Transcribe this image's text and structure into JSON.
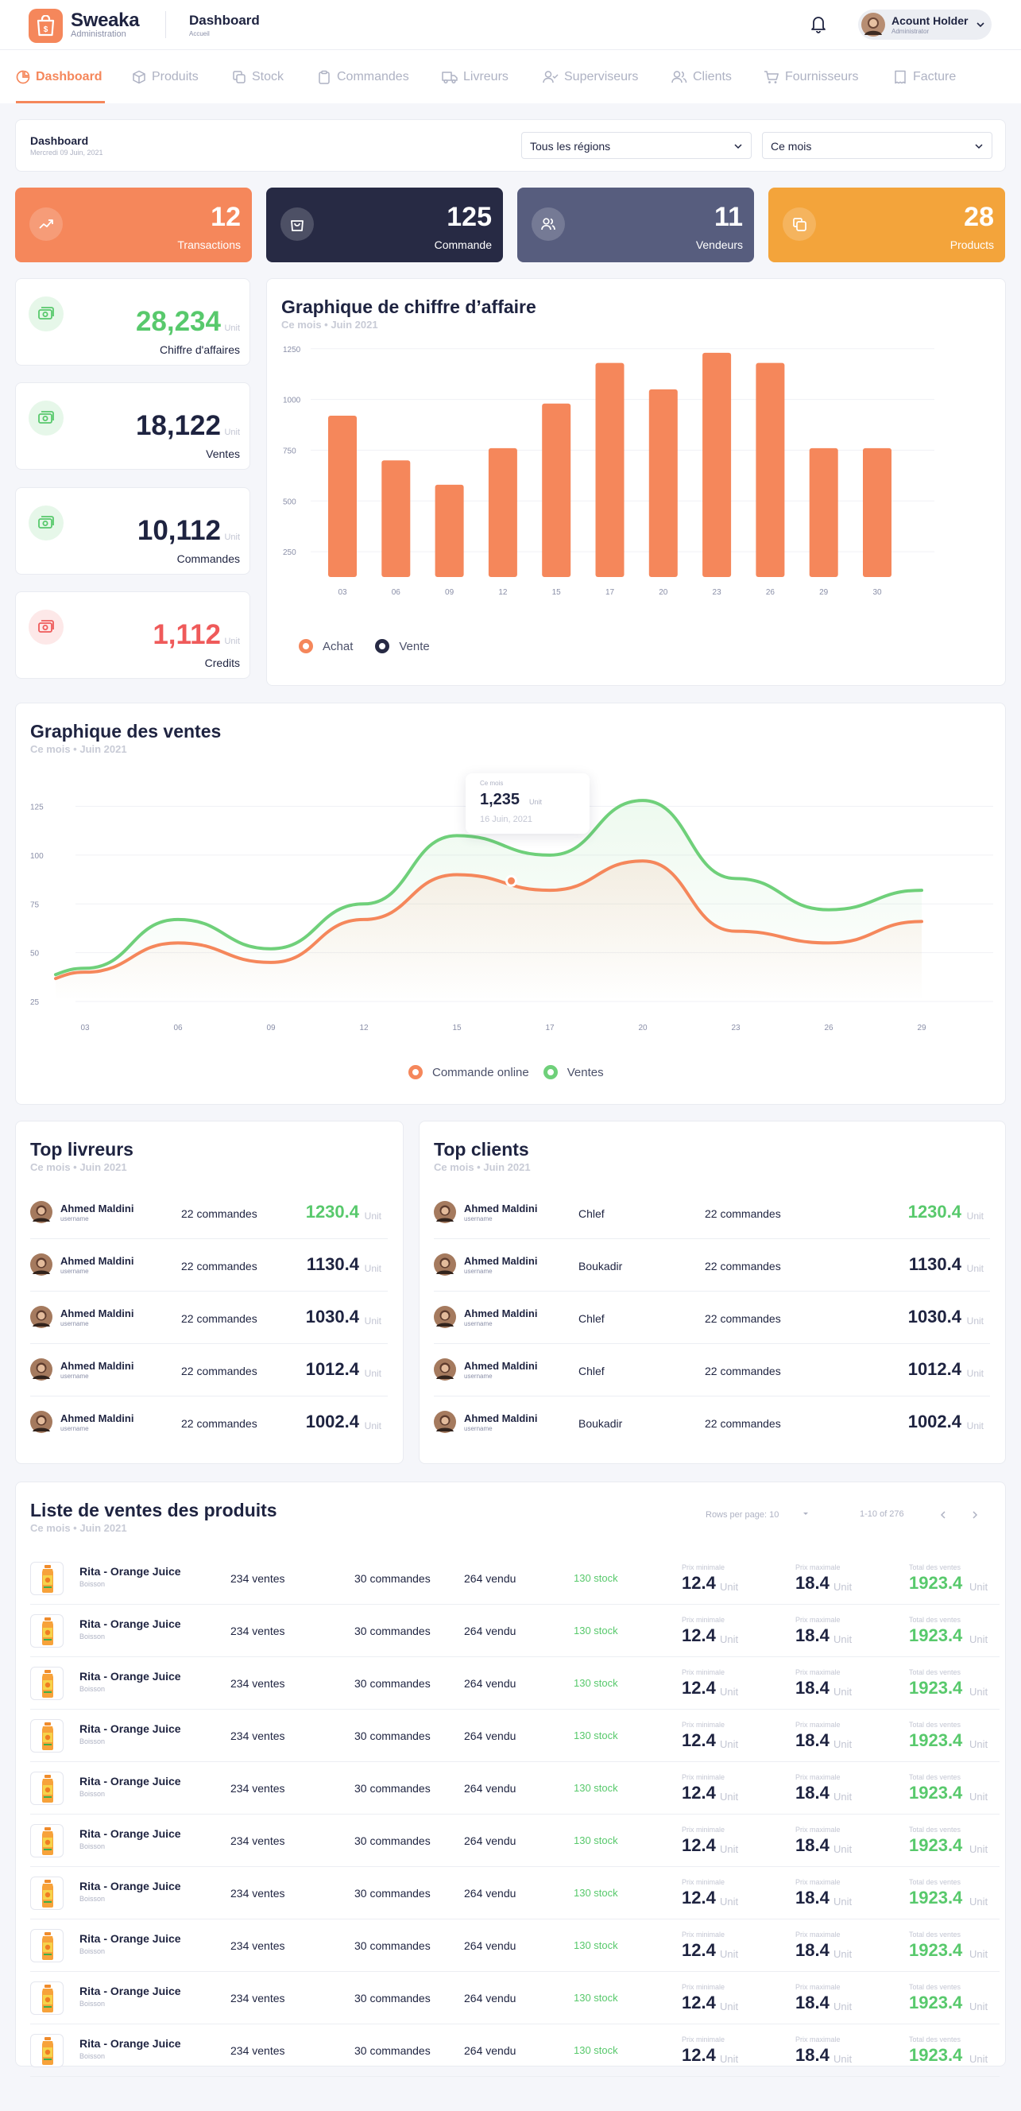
{
  "header": {
    "brand": "Sweaka",
    "brand_sub": "Administration",
    "page_title": "Dashboard",
    "page_sub": "Accueil",
    "user_name": "Acount Holder",
    "user_role": "Administrator"
  },
  "nav": [
    {
      "label": "Dashboard",
      "icon": "pie-chart-icon",
      "active": true
    },
    {
      "label": "Produits",
      "icon": "box-icon"
    },
    {
      "label": "Stock",
      "icon": "copy-icon"
    },
    {
      "label": "Commandes",
      "icon": "clipboard-icon"
    },
    {
      "label": "Livreurs",
      "icon": "truck-icon"
    },
    {
      "label": "Superviseurs",
      "icon": "user-check-icon"
    },
    {
      "label": "Clients",
      "icon": "users-icon"
    },
    {
      "label": "Fournisseurs",
      "icon": "cart-icon"
    },
    {
      "label": "Facture",
      "icon": "receipt-icon"
    }
  ],
  "filters": {
    "title": "Dashboard",
    "date": "Mercredi 09 Juin, 2021",
    "region": "Tous les régions",
    "period": "Ce mois"
  },
  "stats": [
    {
      "value": "12",
      "label": "Transactions",
      "color": "#f5875b"
    },
    {
      "value": "125",
      "label": "Commande",
      "color": "#272a44"
    },
    {
      "value": "11",
      "label": "Vendeurs",
      "color": "#575d7e"
    },
    {
      "value": "28",
      "label": "Products",
      "color": "#f3a43b"
    }
  ],
  "kpis": [
    {
      "value": "28,234",
      "unit": "Unit",
      "label": "Chiffre d'affaires",
      "color": "#58c96c"
    },
    {
      "value": "18,122",
      "unit": "Unit",
      "label": "Ventes",
      "color": "#1e2340"
    },
    {
      "value": "10,112",
      "unit": "Unit",
      "label": "Commandes",
      "color": "#1e2340"
    },
    {
      "value": "1,112",
      "unit": "Unit",
      "label": "Credits",
      "color": "#ef5a5a"
    }
  ],
  "chart_data": [
    {
      "type": "bar",
      "title": "Graphique de chiffre d’affaire",
      "subtitle": "Ce mois • Juin 2021",
      "categories": [
        "03",
        "06",
        "09",
        "12",
        "15",
        "17",
        "20",
        "23",
        "26",
        "29",
        "30"
      ],
      "series": [
        {
          "name": "Achat",
          "values": [
            920,
            700,
            580,
            760,
            980,
            1180,
            1050,
            1230,
            1180,
            760,
            760
          ]
        }
      ],
      "legend": [
        "Achat",
        "Vente"
      ],
      "yticks": [
        250,
        500,
        750,
        1000,
        1250
      ],
      "ylim": [
        125,
        1300
      ],
      "grid": true,
      "colors": {
        "Achat": "#f5875b",
        "Vente": "#272a44"
      }
    },
    {
      "type": "line",
      "title": "Graphique des ventes",
      "subtitle": "Ce mois • Juin 2021",
      "x": [
        "03",
        "06",
        "09",
        "12",
        "15",
        "17",
        "20",
        "23",
        "26",
        "29"
      ],
      "yticks": [
        25,
        50,
        75,
        100,
        125
      ],
      "ylim": [
        25,
        135
      ],
      "grid": true,
      "series": [
        {
          "name": "Commande online",
          "values": [
            40,
            55,
            45,
            67,
            90,
            82,
            97,
            61,
            55,
            66
          ]
        },
        {
          "name": "Ventes",
          "values": [
            42,
            67,
            52,
            75,
            110,
            100,
            128,
            88,
            72,
            82
          ]
        }
      ],
      "colors": {
        "Commande online": "#f5875b",
        "Ventes": "#6fd07a"
      },
      "tooltip": {
        "label": "Ce mois",
        "value": "1,235",
        "unit": "Unit",
        "date": "16 Juin, 2021"
      }
    }
  ],
  "top_livreurs": {
    "title": "Top livreurs",
    "subtitle": "Ce mois • Juin 2021",
    "rows": [
      {
        "name": "Ahmed Maldini",
        "user": "username",
        "orders": "22 commandes",
        "amount": "1230.4",
        "unit": "Unit",
        "color": "#58c96c"
      },
      {
        "name": "Ahmed Maldini",
        "user": "username",
        "orders": "22 commandes",
        "amount": "1130.4",
        "unit": "Unit",
        "color": "#1e2340"
      },
      {
        "name": "Ahmed Maldini",
        "user": "username",
        "orders": "22 commandes",
        "amount": "1030.4",
        "unit": "Unit",
        "color": "#1e2340"
      },
      {
        "name": "Ahmed Maldini",
        "user": "username",
        "orders": "22 commandes",
        "amount": "1012.4",
        "unit": "Unit",
        "color": "#1e2340"
      },
      {
        "name": "Ahmed Maldini",
        "user": "username",
        "orders": "22 commandes",
        "amount": "1002.4",
        "unit": "Unit",
        "color": "#1e2340"
      }
    ]
  },
  "top_clients": {
    "title": "Top clients",
    "subtitle": "Ce mois • Juin 2021",
    "rows": [
      {
        "name": "Ahmed Maldini",
        "user": "username",
        "region": "Chlef",
        "orders": "22 commandes",
        "amount": "1230.4",
        "unit": "Unit",
        "color": "#58c96c"
      },
      {
        "name": "Ahmed Maldini",
        "user": "username",
        "region": "Boukadir",
        "orders": "22 commandes",
        "amount": "1130.4",
        "unit": "Unit",
        "color": "#1e2340"
      },
      {
        "name": "Ahmed Maldini",
        "user": "username",
        "region": "Chlef",
        "orders": "22 commandes",
        "amount": "1030.4",
        "unit": "Unit",
        "color": "#1e2340"
      },
      {
        "name": "Ahmed Maldini",
        "user": "username",
        "region": "Chlef",
        "orders": "22 commandes",
        "amount": "1012.4",
        "unit": "Unit",
        "color": "#1e2340"
      },
      {
        "name": "Ahmed Maldini",
        "user": "username",
        "region": "Boukadir",
        "orders": "22 commandes",
        "amount": "1002.4",
        "unit": "Unit",
        "color": "#1e2340"
      }
    ]
  },
  "products": {
    "title": "Liste de ventes des produits",
    "subtitle": "Ce mois • Juin 2021",
    "rows_per_page": "Rows per page: 10",
    "range": "1-10 of 276",
    "rows": [
      {
        "name": "Rita - Orange Juice",
        "cat": "Boisson",
        "sales": "234 ventes",
        "orders": "30 commandes",
        "sold": "264 vendu",
        "stock": "130 stock",
        "min_label": "Prix minimale",
        "min": "12.4",
        "max_label": "Prix maximale",
        "max": "18.4",
        "total_label": "Total des ventes",
        "total": "1923.4",
        "unit": "Unit"
      },
      {
        "name": "Rita - Orange Juice",
        "cat": "Boisson",
        "sales": "234 ventes",
        "orders": "30 commandes",
        "sold": "264 vendu",
        "stock": "130 stock",
        "min_label": "Prix minimale",
        "min": "12.4",
        "max_label": "Prix maximale",
        "max": "18.4",
        "total_label": "Total des ventes",
        "total": "1923.4",
        "unit": "Unit"
      },
      {
        "name": "Rita - Orange Juice",
        "cat": "Boisson",
        "sales": "234 ventes",
        "orders": "30 commandes",
        "sold": "264 vendu",
        "stock": "130 stock",
        "min_label": "Prix minimale",
        "min": "12.4",
        "max_label": "Prix maximale",
        "max": "18.4",
        "total_label": "Total des ventes",
        "total": "1923.4",
        "unit": "Unit"
      },
      {
        "name": "Rita - Orange Juice",
        "cat": "Boisson",
        "sales": "234 ventes",
        "orders": "30 commandes",
        "sold": "264 vendu",
        "stock": "130 stock",
        "min_label": "Prix minimale",
        "min": "12.4",
        "max_label": "Prix maximale",
        "max": "18.4",
        "total_label": "Total des ventes",
        "total": "1923.4",
        "unit": "Unit"
      },
      {
        "name": "Rita - Orange Juice",
        "cat": "Boisson",
        "sales": "234 ventes",
        "orders": "30 commandes",
        "sold": "264 vendu",
        "stock": "130 stock",
        "min_label": "Prix minimale",
        "min": "12.4",
        "max_label": "Prix maximale",
        "max": "18.4",
        "total_label": "Total des ventes",
        "total": "1923.4",
        "unit": "Unit"
      },
      {
        "name": "Rita - Orange Juice",
        "cat": "Boisson",
        "sales": "234 ventes",
        "orders": "30 commandes",
        "sold": "264 vendu",
        "stock": "130 stock",
        "min_label": "Prix minimale",
        "min": "12.4",
        "max_label": "Prix maximale",
        "max": "18.4",
        "total_label": "Total des ventes",
        "total": "1923.4",
        "unit": "Unit"
      },
      {
        "name": "Rita - Orange Juice",
        "cat": "Boisson",
        "sales": "234 ventes",
        "orders": "30 commandes",
        "sold": "264 vendu",
        "stock": "130 stock",
        "min_label": "Prix minimale",
        "min": "12.4",
        "max_label": "Prix maximale",
        "max": "18.4",
        "total_label": "Total des ventes",
        "total": "1923.4",
        "unit": "Unit"
      },
      {
        "name": "Rita - Orange Juice",
        "cat": "Boisson",
        "sales": "234 ventes",
        "orders": "30 commandes",
        "sold": "264 vendu",
        "stock": "130 stock",
        "min_label": "Prix minimale",
        "min": "12.4",
        "max_label": "Prix maximale",
        "max": "18.4",
        "total_label": "Total des ventes",
        "total": "1923.4",
        "unit": "Unit"
      },
      {
        "name": "Rita - Orange Juice",
        "cat": "Boisson",
        "sales": "234 ventes",
        "orders": "30 commandes",
        "sold": "264 vendu",
        "stock": "130 stock",
        "min_label": "Prix minimale",
        "min": "12.4",
        "max_label": "Prix maximale",
        "max": "18.4",
        "total_label": "Total des ventes",
        "total": "1923.4",
        "unit": "Unit"
      },
      {
        "name": "Rita - Orange Juice",
        "cat": "Boisson",
        "sales": "234 ventes",
        "orders": "30 commandes",
        "sold": "264 vendu",
        "stock": "130 stock",
        "min_label": "Prix minimale",
        "min": "12.4",
        "max_label": "Prix maximale",
        "max": "18.4",
        "total_label": "Total des ventes",
        "total": "1923.4",
        "unit": "Unit"
      }
    ]
  }
}
